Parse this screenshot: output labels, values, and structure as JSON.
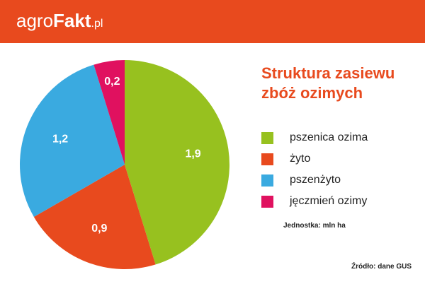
{
  "header": {
    "logo_part1": "agro",
    "logo_part2": "Fakt",
    "logo_part3": ".pl",
    "background_color": "#e84a1e"
  },
  "chart_data": {
    "type": "pie",
    "title": "Struktura zasiewu zbóż ozimych",
    "categories": [
      "pszenica ozima",
      "żyto",
      "pszenżyto",
      "jęczmień ozimy"
    ],
    "values": [
      1.9,
      0.9,
      1.2,
      0.2
    ],
    "value_labels": [
      "1,9",
      "0,9",
      "1,2",
      "0,2"
    ],
    "colors": [
      "#97c11f",
      "#e84a1e",
      "#3aaae0",
      "#e0115f"
    ],
    "legend_position": "right",
    "unit": "Jednostka: mln ha",
    "source": "Źródło: dane GUS"
  }
}
